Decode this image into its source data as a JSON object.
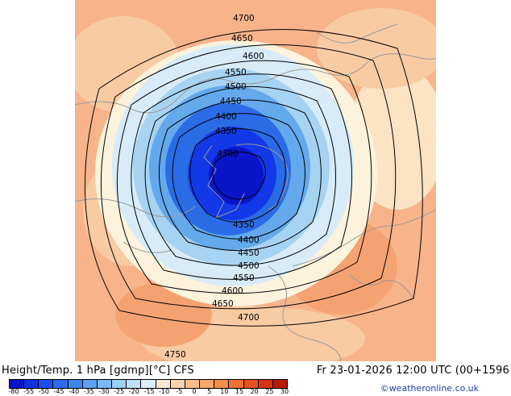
{
  "map": {
    "contours": [
      {
        "label": "4700"
      },
      {
        "label": "4650"
      },
      {
        "label": "4600"
      },
      {
        "label": "4550"
      },
      {
        "label": "4500"
      },
      {
        "label": "4450"
      },
      {
        "label": "4400"
      },
      {
        "label": "4350"
      },
      {
        "label": "4300"
      },
      {
        "label": "4750"
      }
    ],
    "colors": {
      "ocean_land_warm": "#f7b48a",
      "warm_light": "#f9cba3",
      "warm_pale": "#fbe3c4",
      "neutral_pale": "#fdf3dd",
      "cold_pale": "#d7ecf8",
      "cold_light": "#a7d3f2",
      "cold_mid": "#63a9ec",
      "cold_strong": "#2a6be6",
      "cold_deep": "#1238e8",
      "coastline": "#9a9a9a",
      "contour": "#000000"
    }
  },
  "footer": {
    "title": "Height/Temp. 1 hPa [gdmp][°C] CFS",
    "valid": "Fr 23-01-2026 12:00 UTC (00+1596",
    "credit": "©weatheronline.co.uk"
  },
  "colorbar": {
    "ticks": [
      "-80",
      "-55",
      "-50",
      "-45",
      "-40",
      "-35",
      "-30",
      "-25",
      "-20",
      "-15",
      "-10",
      "-5",
      "0",
      "5",
      "10",
      "15",
      "20",
      "25",
      "30"
    ],
    "colors": [
      "#0a14c8",
      "#1232e0",
      "#1a4ef0",
      "#2a6be6",
      "#3d86ee",
      "#5aa3f2",
      "#7ab9f5",
      "#9bcff7",
      "#bde1fa",
      "#dcf0fc",
      "#fce6cf",
      "#fbd3ac",
      "#f9bf8a",
      "#f7a868",
      "#f48f4a",
      "#f07232",
      "#e8501e",
      "#d63212",
      "#b81a0a"
    ]
  }
}
